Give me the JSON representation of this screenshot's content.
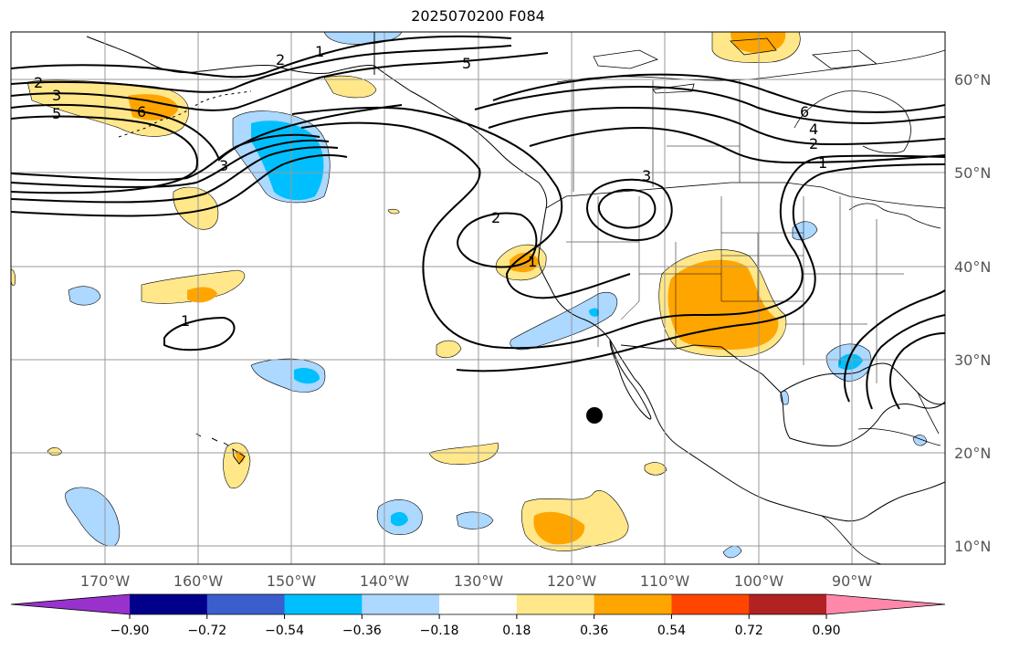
{
  "title": "2025070200 F084",
  "latitude_labels": [
    "60°N",
    "50°N",
    "40°N",
    "30°N",
    "20°N",
    "10°N"
  ],
  "longitude_labels": [
    "170°W",
    "160°W",
    "150°W",
    "140°W",
    "130°W",
    "120°W",
    "110°W",
    "100°W",
    "90°W"
  ],
  "colorbar": {
    "ticks": [
      "−0.90",
      "−0.72",
      "−0.54",
      "−0.36",
      "−0.18",
      "0.18",
      "0.36",
      "0.54",
      "0.72",
      "0.90"
    ],
    "colors": [
      "#9932cc",
      "#00008b",
      "#3a5fcd",
      "#00bfff",
      "#add8ff",
      "#ffffff",
      "#ffe78a",
      "#ffa500",
      "#ff4500",
      "#b22222",
      "#ff88aa"
    ]
  },
  "contour_labels": [
    "1",
    "2",
    "5",
    "2",
    "3",
    "5",
    "6",
    "3",
    "1",
    "2",
    "3",
    "6",
    "4",
    "2",
    "1",
    "1"
  ],
  "colors": {
    "land_outline": "#000000",
    "grid": "#999999",
    "shade_light_orange": "#ffe78a",
    "shade_orange": "#ffa500",
    "shade_light_blue": "#add8ff",
    "shade_blue": "#00bfff"
  }
}
